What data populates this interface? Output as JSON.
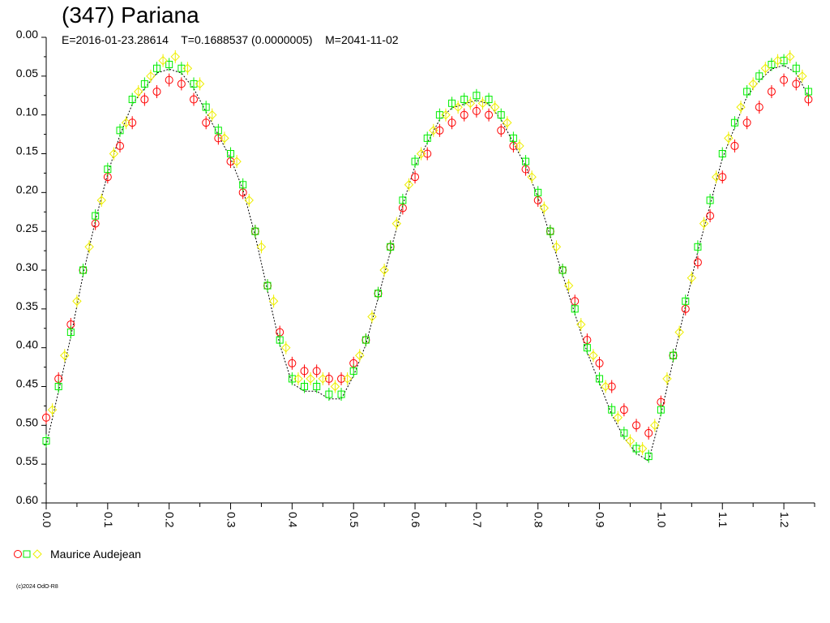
{
  "header": {
    "title": "(347) Pariana",
    "subtitle": "E=2016-01-23.28614    T=0.1688537 (0.0000005)    M=2041-11-02"
  },
  "legend": {
    "label": "Maurice Audejean",
    "symbols": [
      "red-circle-icon",
      "green-square-icon",
      "yellow-diamond-icon"
    ]
  },
  "copyright": "(c)2024 OdO-R8",
  "colors": {
    "red": "#ff0000",
    "green": "#00ee00",
    "yellow": "#eeee00",
    "fit": "#000000"
  },
  "chart_data": {
    "type": "scatter",
    "title": "(347) Pariana",
    "x_ticks": [
      "0.0",
      "0.1",
      "0.2",
      "0.3",
      "0.4",
      "0.5",
      "0.6",
      "0.7",
      "0.8",
      "0.9",
      "1.0",
      "1.1",
      "1.2"
    ],
    "y_ticks": [
      "0.00",
      "0.05",
      "0.10",
      "0.15",
      "0.20",
      "0.25",
      "0.30",
      "0.35",
      "0.40",
      "0.45",
      "0.50",
      "0.55",
      "0.60"
    ],
    "xlim": [
      0.0,
      1.25
    ],
    "ylim": [
      0.0,
      0.6
    ],
    "y_inverted": true,
    "grid": false,
    "series": [
      {
        "name": "Maurice Audejean",
        "color": "#ff0000",
        "marker": "circle",
        "x": [
          0.0,
          0.02,
          0.04,
          0.06,
          0.08,
          0.1,
          0.12,
          0.14,
          0.16,
          0.18,
          0.2,
          0.22,
          0.24,
          0.26,
          0.28,
          0.3,
          0.32,
          0.34,
          0.36,
          0.38,
          0.4,
          0.42,
          0.44,
          0.46,
          0.48,
          0.5,
          0.52,
          0.54,
          0.56,
          0.58,
          0.6,
          0.62,
          0.64,
          0.66,
          0.68,
          0.7,
          0.72,
          0.74,
          0.76,
          0.78,
          0.8,
          0.82,
          0.84,
          0.86,
          0.88,
          0.9,
          0.92,
          0.94,
          0.96,
          0.98,
          1.0,
          1.02,
          1.04,
          1.06,
          1.08,
          1.1,
          1.12,
          1.14,
          1.16,
          1.18,
          1.2,
          1.22,
          1.24
        ],
        "y": [
          0.49,
          0.44,
          0.37,
          0.3,
          0.24,
          0.18,
          0.14,
          0.11,
          0.08,
          0.07,
          0.055,
          0.06,
          0.08,
          0.11,
          0.13,
          0.16,
          0.2,
          0.25,
          0.32,
          0.38,
          0.42,
          0.43,
          0.43,
          0.44,
          0.44,
          0.42,
          0.39,
          0.33,
          0.27,
          0.22,
          0.18,
          0.15,
          0.12,
          0.11,
          0.1,
          0.095,
          0.1,
          0.12,
          0.14,
          0.17,
          0.21,
          0.25,
          0.3,
          0.34,
          0.39,
          0.42,
          0.45,
          0.48,
          0.5,
          0.51,
          0.47,
          0.41,
          0.35,
          0.29,
          0.23,
          0.18,
          0.14,
          0.11,
          0.09,
          0.07,
          0.055,
          0.06,
          0.08
        ]
      },
      {
        "name": "Maurice Audejean",
        "color": "#00ee00",
        "marker": "square",
        "x": [
          0.0,
          0.02,
          0.04,
          0.06,
          0.08,
          0.1,
          0.12,
          0.14,
          0.16,
          0.18,
          0.2,
          0.22,
          0.24,
          0.26,
          0.28,
          0.3,
          0.32,
          0.34,
          0.36,
          0.38,
          0.4,
          0.42,
          0.44,
          0.46,
          0.48,
          0.5,
          0.52,
          0.54,
          0.56,
          0.58,
          0.6,
          0.62,
          0.64,
          0.66,
          0.68,
          0.7,
          0.72,
          0.74,
          0.76,
          0.78,
          0.8,
          0.82,
          0.84,
          0.86,
          0.88,
          0.9,
          0.92,
          0.94,
          0.96,
          0.98,
          1.0,
          1.02,
          1.04,
          1.06,
          1.08,
          1.1,
          1.12,
          1.14,
          1.16,
          1.18,
          1.2,
          1.22,
          1.24
        ],
        "y": [
          0.52,
          0.45,
          0.38,
          0.3,
          0.23,
          0.17,
          0.12,
          0.08,
          0.06,
          0.04,
          0.035,
          0.04,
          0.06,
          0.09,
          0.12,
          0.15,
          0.19,
          0.25,
          0.32,
          0.39,
          0.44,
          0.45,
          0.45,
          0.46,
          0.46,
          0.43,
          0.39,
          0.33,
          0.27,
          0.21,
          0.16,
          0.13,
          0.1,
          0.085,
          0.08,
          0.075,
          0.08,
          0.1,
          0.13,
          0.16,
          0.2,
          0.25,
          0.3,
          0.35,
          0.4,
          0.44,
          0.48,
          0.51,
          0.53,
          0.54,
          0.48,
          0.41,
          0.34,
          0.27,
          0.21,
          0.15,
          0.11,
          0.07,
          0.05,
          0.035,
          0.03,
          0.04,
          0.07
        ]
      },
      {
        "name": "Maurice Audejean",
        "color": "#eeee00",
        "marker": "diamond",
        "x": [
          0.01,
          0.03,
          0.05,
          0.07,
          0.09,
          0.11,
          0.13,
          0.15,
          0.17,
          0.19,
          0.21,
          0.23,
          0.25,
          0.27,
          0.29,
          0.31,
          0.33,
          0.35,
          0.37,
          0.39,
          0.41,
          0.43,
          0.45,
          0.47,
          0.49,
          0.51,
          0.53,
          0.55,
          0.57,
          0.59,
          0.61,
          0.63,
          0.65,
          0.67,
          0.69,
          0.71,
          0.73,
          0.75,
          0.77,
          0.79,
          0.81,
          0.83,
          0.85,
          0.87,
          0.89,
          0.91,
          0.93,
          0.95,
          0.97,
          0.99,
          1.01,
          1.03,
          1.05,
          1.07,
          1.09,
          1.11,
          1.13,
          1.15,
          1.17,
          1.19,
          1.21,
          1.23
        ],
        "y": [
          0.48,
          0.41,
          0.34,
          0.27,
          0.21,
          0.15,
          0.11,
          0.07,
          0.05,
          0.03,
          0.025,
          0.04,
          0.06,
          0.1,
          0.13,
          0.16,
          0.21,
          0.27,
          0.34,
          0.4,
          0.44,
          0.44,
          0.44,
          0.45,
          0.44,
          0.41,
          0.36,
          0.3,
          0.24,
          0.19,
          0.15,
          0.12,
          0.1,
          0.09,
          0.085,
          0.085,
          0.09,
          0.11,
          0.14,
          0.18,
          0.22,
          0.27,
          0.32,
          0.37,
          0.41,
          0.45,
          0.49,
          0.52,
          0.53,
          0.5,
          0.44,
          0.38,
          0.31,
          0.24,
          0.18,
          0.13,
          0.09,
          0.06,
          0.04,
          0.03,
          0.025,
          0.05
        ]
      }
    ]
  }
}
